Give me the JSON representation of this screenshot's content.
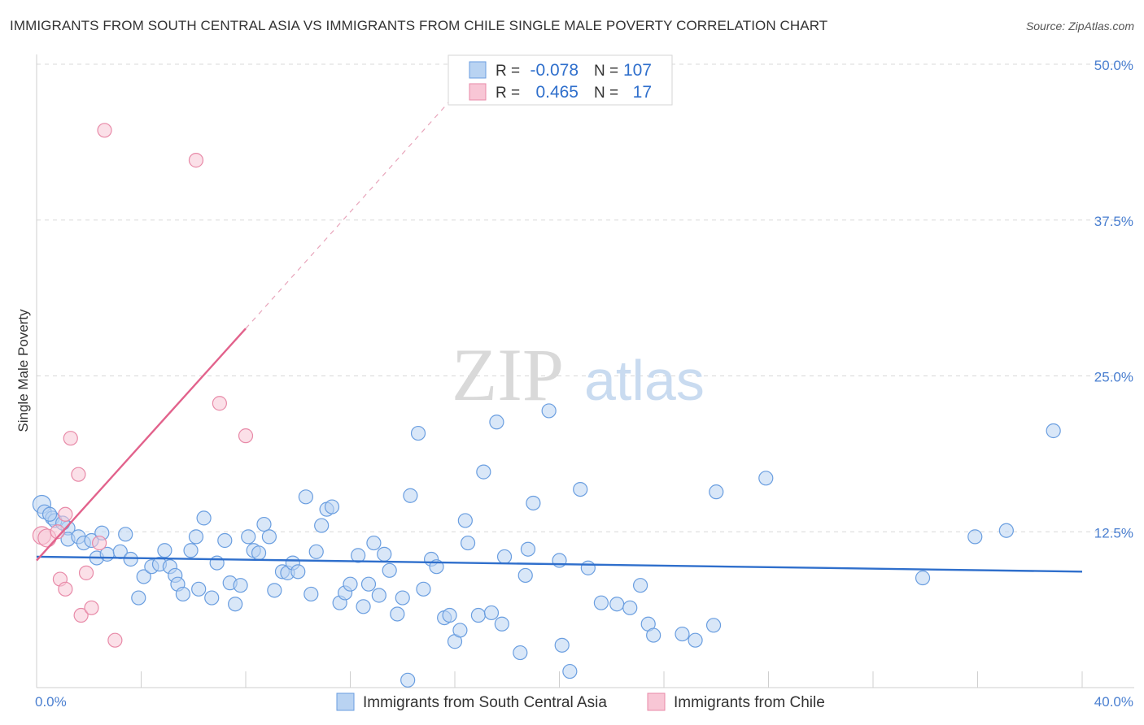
{
  "title": "IMMIGRANTS FROM SOUTH CENTRAL ASIA VS IMMIGRANTS FROM CHILE SINGLE MALE POVERTY CORRELATION CHART",
  "source": "Source: ZipAtlas.com",
  "watermark": {
    "zip": "ZIP",
    "atlas": "atlas"
  },
  "colors": {
    "blue_fill": "#b9d3f2",
    "blue_stroke": "#6a9ee0",
    "blue_line": "#2f6fcc",
    "pink_fill": "#f8c6d5",
    "pink_stroke": "#e88aa8",
    "pink_line": "#e2628c",
    "grid": "#d8d8d8",
    "tick_text": "#4a7fd0"
  },
  "legend": {
    "r_label": "R =",
    "n_label": "N =",
    "rows": [
      {
        "series": "blue",
        "r": "-0.078",
        "n": "107"
      },
      {
        "series": "pink",
        "r": "0.465",
        "n": "17"
      }
    ]
  },
  "chart_data": {
    "type": "scatter",
    "title": "IMMIGRANTS FROM SOUTH CENTRAL ASIA VS IMMIGRANTS FROM CHILE SINGLE MALE POVERTY CORRELATION CHART",
    "xlabel": "",
    "ylabel": "Single Male Poverty",
    "xlim": [
      0,
      40
    ],
    "ylim": [
      0,
      50
    ],
    "x_tick_labels": [
      "0.0%",
      "40.0%"
    ],
    "y_ticks": [
      {
        "value": 12.5,
        "label": "12.5%"
      },
      {
        "value": 25.0,
        "label": "25.0%"
      },
      {
        "value": 37.5,
        "label": "37.5%"
      },
      {
        "value": 50.0,
        "label": "50.0%"
      }
    ],
    "series": [
      {
        "name": "Immigrants from South Central Asia",
        "color": "blue",
        "trend": {
          "x": [
            0,
            40
          ],
          "y": [
            10.5,
            9.3
          ]
        },
        "points": [
          [
            0.2,
            14.7
          ],
          [
            0.3,
            14.1
          ],
          [
            0.6,
            13.6
          ],
          [
            0.7,
            13.4
          ],
          [
            1.2,
            12.8
          ],
          [
            1.2,
            11.9
          ],
          [
            1.6,
            12.1
          ],
          [
            1.8,
            11.6
          ],
          [
            2.1,
            11.8
          ],
          [
            2.5,
            12.4
          ],
          [
            2.3,
            10.4
          ],
          [
            2.7,
            10.7
          ],
          [
            3.2,
            10.9
          ],
          [
            3.4,
            12.3
          ],
          [
            3.6,
            10.3
          ],
          [
            3.9,
            7.2
          ],
          [
            4.1,
            8.9
          ],
          [
            4.4,
            9.7
          ],
          [
            4.7,
            9.9
          ],
          [
            4.9,
            11.0
          ],
          [
            5.1,
            9.7
          ],
          [
            5.3,
            9.0
          ],
          [
            5.4,
            8.3
          ],
          [
            5.6,
            7.5
          ],
          [
            5.9,
            11.0
          ],
          [
            6.1,
            12.1
          ],
          [
            6.2,
            7.9
          ],
          [
            6.4,
            13.6
          ],
          [
            6.7,
            7.2
          ],
          [
            6.9,
            10.0
          ],
          [
            7.2,
            11.8
          ],
          [
            7.4,
            8.4
          ],
          [
            7.6,
            6.7
          ],
          [
            7.8,
            8.2
          ],
          [
            8.1,
            12.1
          ],
          [
            8.3,
            11.0
          ],
          [
            8.5,
            10.8
          ],
          [
            8.7,
            13.1
          ],
          [
            8.9,
            12.1
          ],
          [
            9.1,
            7.8
          ],
          [
            9.4,
            9.3
          ],
          [
            9.6,
            9.2
          ],
          [
            9.8,
            10.0
          ],
          [
            10.0,
            9.3
          ],
          [
            10.3,
            15.3
          ],
          [
            10.5,
            7.5
          ],
          [
            10.7,
            10.9
          ],
          [
            10.9,
            13.0
          ],
          [
            11.1,
            14.3
          ],
          [
            11.3,
            14.5
          ],
          [
            11.6,
            6.8
          ],
          [
            11.8,
            7.6
          ],
          [
            12.0,
            8.3
          ],
          [
            12.3,
            10.6
          ],
          [
            12.5,
            6.5
          ],
          [
            12.7,
            8.3
          ],
          [
            12.9,
            11.6
          ],
          [
            13.1,
            7.4
          ],
          [
            13.3,
            10.7
          ],
          [
            13.5,
            9.4
          ],
          [
            13.8,
            5.9
          ],
          [
            14.0,
            7.2
          ],
          [
            14.3,
            15.4
          ],
          [
            14.6,
            20.4
          ],
          [
            14.8,
            7.9
          ],
          [
            15.1,
            10.3
          ],
          [
            15.3,
            9.7
          ],
          [
            15.6,
            5.6
          ],
          [
            15.8,
            5.8
          ],
          [
            16.0,
            3.7
          ],
          [
            16.2,
            4.6
          ],
          [
            16.4,
            13.4
          ],
          [
            16.5,
            11.6
          ],
          [
            16.9,
            5.8
          ],
          [
            17.1,
            17.3
          ],
          [
            17.4,
            6.0
          ],
          [
            17.6,
            21.3
          ],
          [
            17.8,
            5.1
          ],
          [
            17.9,
            10.5
          ],
          [
            18.5,
            2.8
          ],
          [
            18.7,
            9.0
          ],
          [
            18.8,
            11.1
          ],
          [
            19.0,
            14.8
          ],
          [
            19.6,
            22.2
          ],
          [
            20.0,
            10.2
          ],
          [
            20.1,
            3.4
          ],
          [
            20.4,
            1.3
          ],
          [
            20.8,
            15.9
          ],
          [
            21.1,
            9.6
          ],
          [
            21.6,
            6.8
          ],
          [
            22.2,
            6.7
          ],
          [
            22.7,
            6.4
          ],
          [
            23.1,
            8.2
          ],
          [
            23.4,
            5.1
          ],
          [
            23.6,
            4.2
          ],
          [
            24.7,
            4.3
          ],
          [
            25.2,
            3.8
          ],
          [
            25.9,
            5.0
          ],
          [
            26.0,
            15.7
          ],
          [
            27.9,
            16.8
          ],
          [
            33.9,
            8.8
          ],
          [
            35.9,
            12.1
          ],
          [
            37.1,
            12.6
          ],
          [
            38.9,
            20.6
          ],
          [
            14.2,
            0.6
          ],
          [
            0.5,
            13.9
          ],
          [
            1.0,
            13.2
          ]
        ]
      },
      {
        "name": "Immigrants from Chile",
        "color": "pink",
        "trend": {
          "x": [
            0,
            8
          ],
          "y": [
            10.2,
            28.8
          ],
          "dashed_to": [
            16,
            47.5
          ]
        },
        "points": [
          [
            0.2,
            12.2
          ],
          [
            0.4,
            12.0
          ],
          [
            0.8,
            12.5
          ],
          [
            1.1,
            13.9
          ],
          [
            0.9,
            8.7
          ],
          [
            1.1,
            7.9
          ],
          [
            1.3,
            20.0
          ],
          [
            1.6,
            17.1
          ],
          [
            1.7,
            5.8
          ],
          [
            1.9,
            9.2
          ],
          [
            2.1,
            6.4
          ],
          [
            2.4,
            11.6
          ],
          [
            3.0,
            3.8
          ],
          [
            2.6,
            44.7
          ],
          [
            6.1,
            42.3
          ],
          [
            7.0,
            22.8
          ],
          [
            8.0,
            20.2
          ]
        ]
      }
    ]
  }
}
